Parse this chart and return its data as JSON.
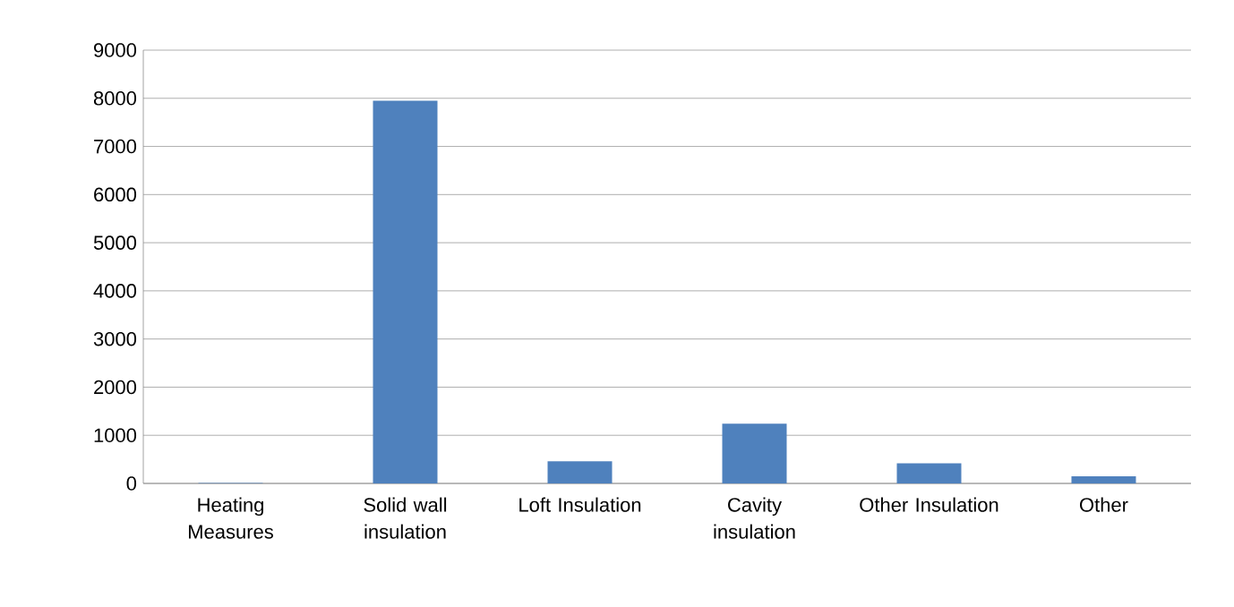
{
  "chart_data": {
    "type": "bar",
    "categories": [
      "Heating Measures",
      "Solid wall insulation",
      "Loft Insulation",
      "Cavity insulation",
      "Other Insulation",
      "Other"
    ],
    "values": [
      10,
      7950,
      460,
      1240,
      420,
      150
    ],
    "color": "#4f81bd",
    "ylim": [
      0,
      9000
    ],
    "yticks": [
      0,
      1000,
      2000,
      3000,
      4000,
      5000,
      6000,
      7000,
      8000,
      9000
    ],
    "grid": "y"
  }
}
